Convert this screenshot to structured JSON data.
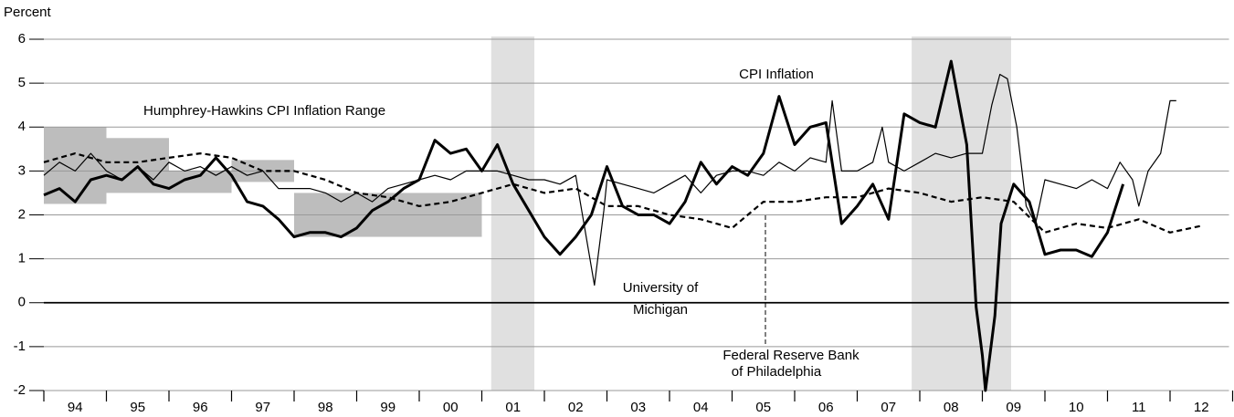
{
  "chart_data": {
    "type": "line",
    "y_label": "Percent",
    "xlim": [
      1994,
      2013
    ],
    "xticks": [
      1994,
      1995,
      1996,
      1997,
      1998,
      1999,
      2000,
      2001,
      2002,
      2003,
      2004,
      2005,
      2006,
      2007,
      2008,
      2009,
      2010,
      2011,
      2012,
      2013
    ],
    "xtick_labels": [
      {
        "value": 1994.5,
        "label": "94"
      },
      {
        "value": 1995.5,
        "label": "95"
      },
      {
        "value": 1996.5,
        "label": "96"
      },
      {
        "value": 1997.5,
        "label": "97"
      },
      {
        "value": 1998.5,
        "label": "98"
      },
      {
        "value": 1999.5,
        "label": "99"
      },
      {
        "value": 2000.5,
        "label": "00"
      },
      {
        "value": 2001.5,
        "label": "01"
      },
      {
        "value": 2002.5,
        "label": "02"
      },
      {
        "value": 2003.5,
        "label": "03"
      },
      {
        "value": 2004.5,
        "label": "04"
      },
      {
        "value": 2005.5,
        "label": "05"
      },
      {
        "value": 2006.5,
        "label": "06"
      },
      {
        "value": 2007.5,
        "label": "07"
      },
      {
        "value": 2008.5,
        "label": "08"
      },
      {
        "value": 2009.5,
        "label": "09"
      },
      {
        "value": 2010.5,
        "label": "10"
      },
      {
        "value": 2011.5,
        "label": "11"
      },
      {
        "value": 2012.5,
        "label": "12"
      }
    ],
    "ylim": [
      -2,
      6
    ],
    "yticks": [
      -2,
      -1,
      0,
      1,
      2,
      3,
      4,
      5,
      6
    ],
    "grid": true,
    "recessions": [
      {
        "start": 2001.15,
        "end": 2001.84,
        "color": "#e0e0e0"
      },
      {
        "start": 2007.87,
        "end": 2009.46,
        "color": "#e0e0e0"
      }
    ],
    "range_label": "Humphrey-Hawkins CPI Inflation Range",
    "range_color": "#bdbdbd",
    "ranges": [
      {
        "start": 1994,
        "end": 1995,
        "low": 2.25,
        "high": 4
      },
      {
        "start": 1995,
        "end": 1996,
        "low": 2.5,
        "high": 3.75
      },
      {
        "start": 1996,
        "end": 1997,
        "low": 2.5,
        "high": 3
      },
      {
        "start": 1997,
        "end": 1998,
        "low": 2.75,
        "high": 3.25
      },
      {
        "start": 1998,
        "end": 2001,
        "low": 1.5,
        "high": 2.5
      }
    ],
    "series": [
      {
        "name": "CPI Inflation",
        "color": "#000000",
        "width": 3,
        "style": "solid",
        "x": [
          1994,
          1994.25,
          1994.5,
          1994.75,
          1995,
          1995.25,
          1995.5,
          1995.75,
          1996,
          1996.25,
          1996.5,
          1996.75,
          1997,
          1997.25,
          1997.5,
          1997.75,
          1998,
          1998.25,
          1998.5,
          1998.75,
          1999,
          1999.25,
          1999.5,
          1999.75,
          2000,
          2000.25,
          2000.5,
          2000.75,
          2001,
          2001.25,
          2001.5,
          2001.75,
          2002,
          2002.25,
          2002.5,
          2002.75,
          2003,
          2003.25,
          2003.5,
          2003.75,
          2004,
          2004.25,
          2004.5,
          2004.75,
          2005,
          2005.25,
          2005.5,
          2005.75,
          2006,
          2006.25,
          2006.5,
          2006.75,
          2007,
          2007.25,
          2007.5,
          2007.75,
          2008,
          2008.25,
          2008.5,
          2008.75,
          2008.9,
          2009,
          2009.05,
          2009.2,
          2009.3,
          2009.5,
          2009.75,
          2010,
          2010.25,
          2010.5,
          2010.75,
          2011,
          2011.25
        ],
        "values": [
          2.45,
          2.6,
          2.3,
          2.8,
          2.9,
          2.8,
          3.1,
          2.7,
          2.6,
          2.8,
          2.9,
          3.3,
          2.9,
          2.3,
          2.2,
          1.9,
          1.5,
          1.6,
          1.6,
          1.5,
          1.7,
          2.1,
          2.3,
          2.6,
          2.8,
          3.7,
          3.4,
          3.5,
          3.0,
          3.6,
          2.7,
          2.1,
          1.5,
          1.1,
          1.5,
          2.0,
          3.1,
          2.2,
          2.0,
          2.0,
          1.8,
          2.3,
          3.2,
          2.7,
          3.1,
          2.9,
          3.4,
          4.7,
          3.6,
          4.0,
          4.1,
          1.8,
          2.2,
          2.7,
          1.9,
          4.3,
          4.1,
          4.0,
          5.5,
          3.6,
          -0.1,
          -1.2,
          -2.0,
          -0.3,
          1.8,
          2.7,
          2.3,
          1.1,
          1.2,
          1.2,
          1.05,
          1.6,
          2.7
        ]
      },
      {
        "name": "University of Michigan",
        "color": "#000000",
        "width": 1.2,
        "style": "solid",
        "x": [
          1994,
          1994.25,
          1994.5,
          1994.75,
          1995,
          1995.25,
          1995.5,
          1995.75,
          1996,
          1996.25,
          1996.5,
          1996.75,
          1997,
          1997.25,
          1997.5,
          1997.75,
          1998,
          1998.25,
          1998.5,
          1998.75,
          1999,
          1999.25,
          1999.5,
          1999.75,
          2000,
          2000.25,
          2000.5,
          2000.75,
          2001,
          2001.25,
          2001.5,
          2001.75,
          2002,
          2002.25,
          2002.5,
          2002.8,
          2002.95,
          2003,
          2003.25,
          2003.5,
          2003.75,
          2004,
          2004.25,
          2004.5,
          2004.75,
          2005,
          2005.25,
          2005.5,
          2005.75,
          2006,
          2006.25,
          2006.5,
          2006.6,
          2006.75,
          2007,
          2007.25,
          2007.4,
          2007.5,
          2007.75,
          2008,
          2008.25,
          2008.5,
          2008.75,
          2009,
          2009.15,
          2009.28,
          2009.4,
          2009.55,
          2009.7,
          2009.85,
          2010,
          2010.25,
          2010.5,
          2010.75,
          2011,
          2011.2,
          2011.4,
          2011.5,
          2011.65,
          2011.85,
          2012,
          2012.1
        ],
        "values": [
          2.9,
          3.2,
          3.0,
          3.4,
          3.0,
          2.8,
          3.1,
          2.8,
          3.2,
          3.0,
          3.1,
          2.9,
          3.1,
          2.9,
          3.0,
          2.6,
          2.6,
          2.6,
          2.5,
          2.3,
          2.5,
          2.3,
          2.6,
          2.7,
          2.8,
          2.9,
          2.8,
          3.0,
          3.0,
          3.0,
          2.9,
          2.8,
          2.8,
          2.7,
          2.9,
          0.4,
          2.1,
          2.8,
          2.7,
          2.6,
          2.5,
          2.7,
          2.9,
          2.5,
          2.9,
          3.0,
          3.0,
          2.9,
          3.2,
          3.0,
          3.3,
          3.2,
          4.6,
          3.0,
          3.0,
          3.2,
          4.0,
          3.2,
          3.0,
          3.2,
          3.4,
          3.3,
          3.4,
          3.4,
          4.5,
          5.2,
          5.1,
          4.0,
          2.2,
          1.8,
          2.8,
          2.7,
          2.6,
          2.8,
          2.6,
          3.2,
          2.8,
          2.2,
          3.0,
          3.4,
          4.6,
          4.6
        ]
      },
      {
        "name": "Federal Reserve Bank of Philadelphia",
        "color": "#000000",
        "width": 2.2,
        "style": "dashed",
        "x": [
          1994,
          1994.5,
          1995,
          1995.5,
          1996,
          1996.5,
          1997,
          1997.5,
          1998,
          1998.5,
          1999,
          1999.5,
          2000,
          2000.5,
          2001,
          2001.5,
          2002,
          2002.5,
          2003,
          2003.5,
          2004,
          2004.5,
          2005,
          2005.5,
          2006,
          2006.5,
          2007,
          2007.5,
          2008,
          2008.5,
          2009,
          2009.5,
          2010,
          2010.5,
          2011,
          2011.5,
          2012,
          2012.5
        ],
        "values": [
          3.2,
          3.4,
          3.2,
          3.2,
          3.3,
          3.4,
          3.3,
          3.0,
          3.0,
          2.8,
          2.5,
          2.4,
          2.2,
          2.3,
          2.5,
          2.7,
          2.5,
          2.6,
          2.2,
          2.2,
          2.0,
          1.9,
          1.7,
          2.3,
          2.3,
          2.4,
          2.4,
          2.6,
          2.5,
          2.3,
          2.4,
          2.3,
          1.6,
          1.8,
          1.7,
          1.9,
          1.6,
          1.75
        ]
      }
    ]
  }
}
